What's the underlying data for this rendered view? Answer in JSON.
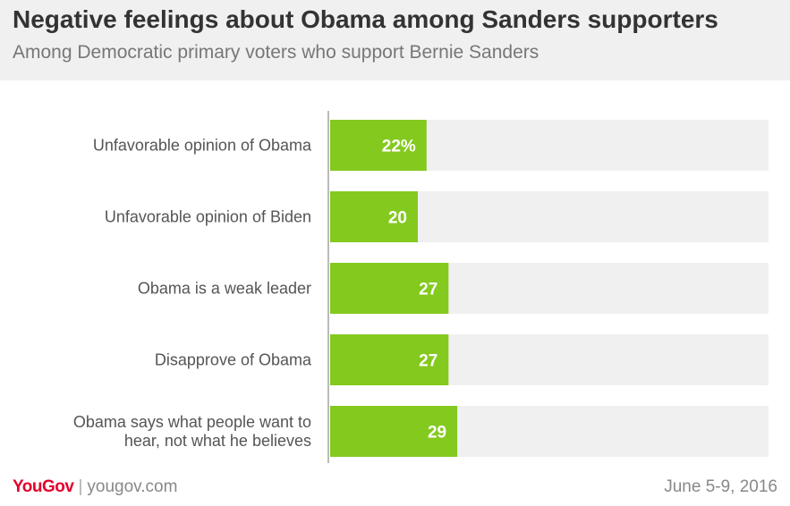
{
  "header": {
    "title": "Negative feelings about Obama among Sanders supporters",
    "subtitle": "Among Democratic primary voters who support Bernie Sanders"
  },
  "chart_data": {
    "type": "bar",
    "orientation": "horizontal",
    "categories": [
      [
        "Unfavorable opinion of Obama"
      ],
      [
        "Unfavorable opinion of Biden"
      ],
      [
        "Obama is a weak leader"
      ],
      [
        "Disapprove of Obama"
      ],
      [
        "Obama says what people want to",
        "hear, not what he believes"
      ]
    ],
    "values": [
      22,
      20,
      27,
      27,
      29
    ],
    "value_labels": [
      "22%",
      "20",
      "27",
      "27",
      "29"
    ],
    "xlim": [
      0,
      100
    ],
    "colors": {
      "bar": "#84c91e",
      "track": "#f0f0f0",
      "axis": "#bbbbbb"
    }
  },
  "footer": {
    "brand": "YouGov",
    "separator": "|",
    "url": "yougov.com",
    "date": "June 5-9, 2016"
  }
}
